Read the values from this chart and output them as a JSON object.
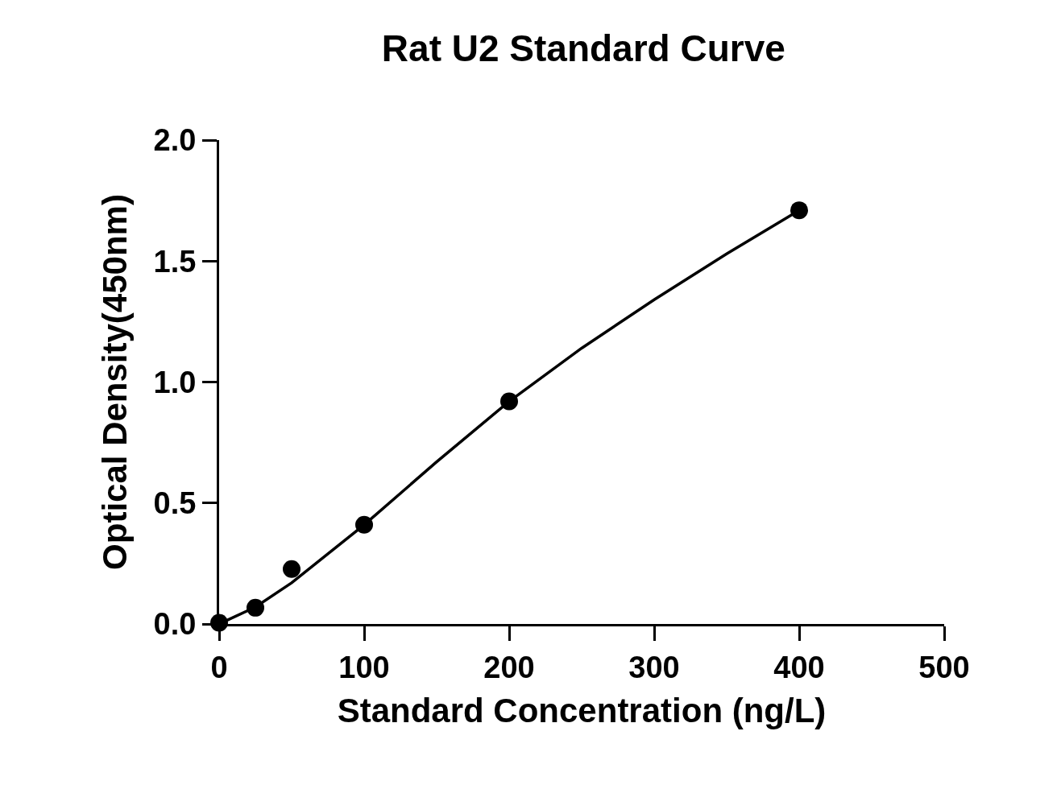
{
  "chart_data": {
    "type": "scatter",
    "title": "Rat U2 Standard Curve",
    "xlabel": "Standard Concentration (ng/L)",
    "ylabel": "Optical Density(450nm)",
    "xlim": [
      0,
      500
    ],
    "xticks": [
      0,
      100,
      200,
      300,
      400,
      500
    ],
    "ylim": [
      0,
      2
    ],
    "yticks": [
      {
        "value": 0,
        "label": "0.0"
      },
      {
        "value": 0.5,
        "label": "0.5"
      },
      {
        "value": 1,
        "label": "1.0"
      },
      {
        "value": 1.5,
        "label": "1.5"
      },
      {
        "value": 2,
        "label": "2.0"
      }
    ],
    "grid": false,
    "legend": false,
    "series": [
      {
        "marker": "circle",
        "color": "#000000",
        "x": [
          0,
          25,
          50,
          100,
          200,
          400
        ],
        "values": [
          0.005,
          0.067,
          0.227,
          0.41,
          0.92,
          1.71
        ]
      },
      {
        "type": "line",
        "marker": "none",
        "color": "#000000",
        "line_style": "solid",
        "x": [
          0,
          25,
          50,
          75,
          100,
          150,
          200,
          250,
          300,
          350,
          400
        ],
        "values": [
          0,
          0.07,
          0.17,
          0.29,
          0.41,
          0.67,
          0.92,
          1.14,
          1.34,
          1.53,
          1.71
        ]
      }
    ]
  }
}
